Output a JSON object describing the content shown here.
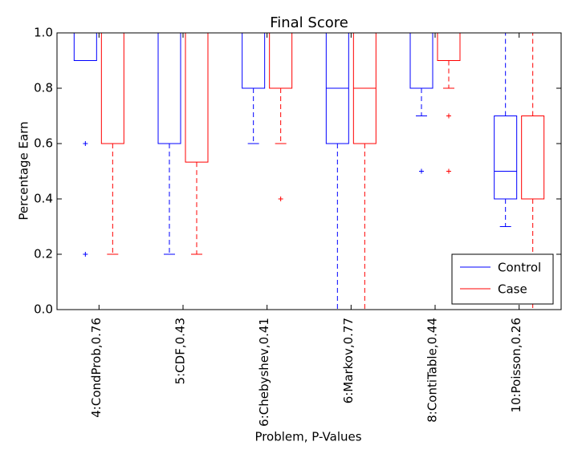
{
  "chart_data": {
    "type": "boxplot",
    "title": "Final Score",
    "xlabel": "Problem, P-Values",
    "ylabel": "Percentage Earn",
    "categories": [
      "4:CondProb,0.76",
      "5:CDF,0.43",
      "6:Chebyshev,0.41",
      "6:Markov,0.77",
      "8:ContiTable,0.44",
      "10:Poisson,0.26"
    ],
    "ylim": [
      0,
      1
    ],
    "yticks": [
      {
        "value": 0,
        "label": "0.0"
      },
      0.2,
      0.4,
      0.6,
      0.8,
      {
        "value": 1,
        "label": "1.0"
      }
    ],
    "legend": "lower right",
    "series": [
      {
        "name": "Control",
        "color": "#0000ff",
        "whislo": [
          0.9,
          0.2,
          0.6,
          0.0,
          0.7,
          0.3
        ],
        "q1": [
          0.9,
          0.6,
          0.8,
          0.6,
          0.8,
          0.4
        ],
        "median": [
          1.0,
          1.0,
          1.0,
          0.8,
          1.0,
          0.5
        ],
        "q3": [
          1.0,
          1.0,
          1.0,
          1.0,
          1.0,
          0.7
        ],
        "whishi": [
          1.0,
          1.0,
          1.0,
          1.0,
          1.0,
          1.0
        ],
        "fliers": [
          [
            0.6,
            0.2
          ],
          [],
          [],
          [],
          [
            0.5
          ],
          []
        ]
      },
      {
        "name": "Case",
        "color": "#ff0000",
        "whislo": [
          0.2,
          0.2,
          0.6,
          0.0,
          0.8,
          0.0
        ],
        "q1": [
          0.6,
          0.533,
          0.8,
          0.6,
          0.9,
          0.4
        ],
        "median": [
          1.0,
          1.0,
          1.0,
          0.8,
          1.0,
          0.4
        ],
        "q3": [
          1.0,
          1.0,
          1.0,
          1.0,
          1.0,
          0.7
        ],
        "whishi": [
          1.0,
          1.0,
          1.0,
          1.0,
          1.0,
          1.0
        ],
        "fliers": [
          [],
          [],
          [
            0.4
          ],
          [],
          [
            0.7,
            0.5
          ],
          []
        ]
      }
    ]
  }
}
